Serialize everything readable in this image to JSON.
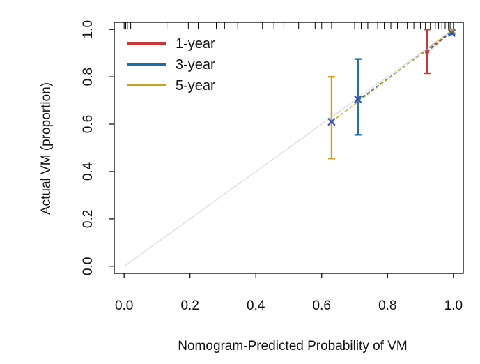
{
  "chart_data": {
    "type": "line",
    "title": "",
    "xlabel": "Nomogram-Predicted Probability of VM",
    "ylabel": "Actual VM (proportion)",
    "xlim": [
      -0.03,
      1.03
    ],
    "ylim": [
      -0.03,
      1.03
    ],
    "xticks": [
      "0.0",
      "0.2",
      "0.4",
      "0.6",
      "0.8",
      "1.0"
    ],
    "yticks": [
      "0.0",
      "0.2",
      "0.4",
      "0.6",
      "0.8",
      "1.0"
    ],
    "grid": false,
    "legend_position": "top-left",
    "ideal_line": {
      "x": [
        0,
        1
      ],
      "y": [
        0,
        1
      ],
      "color": "#d9d9d9"
    },
    "series": [
      {
        "name": "1-year",
        "color": "#c8383a",
        "points": [
          {
            "x": 0.92,
            "y": 0.905,
            "lower": 0.815,
            "upper": 1.0
          },
          {
            "x": 0.995,
            "y": 0.99,
            "lower": 0.98,
            "upper": 1.0
          }
        ]
      },
      {
        "name": "3-year",
        "color": "#1a6fa8",
        "points": [
          {
            "x": 0.71,
            "y": 0.7,
            "lower": 0.555,
            "upper": 0.875
          },
          {
            "x": 0.995,
            "y": 0.99,
            "lower": 0.98,
            "upper": 1.0
          }
        ]
      },
      {
        "name": "5-year",
        "color": "#c9a227",
        "points": [
          {
            "x": 0.63,
            "y": 0.61,
            "lower": 0.455,
            "upper": 0.8
          },
          {
            "x": 0.995,
            "y": 0.995,
            "lower": 0.985,
            "upper": 1.0
          }
        ]
      }
    ],
    "cross_markers": [
      {
        "x": 0.63,
        "y": 0.61
      },
      {
        "x": 0.71,
        "y": 0.705
      },
      {
        "x": 0.995,
        "y": 0.985
      }
    ],
    "marker_color": "#3a4fb0",
    "rug_ticks": [
      0.0,
      0.005,
      0.01,
      0.02,
      0.13,
      0.195,
      0.225,
      0.28,
      0.305,
      0.345,
      0.42,
      0.455,
      0.485,
      0.53,
      0.555,
      0.58,
      0.6,
      0.63,
      0.7,
      0.72,
      0.74,
      0.77,
      0.79,
      0.81,
      0.83,
      0.86,
      0.88,
      0.9,
      0.915,
      0.93,
      0.945,
      0.955,
      0.965,
      0.975,
      0.985,
      0.99,
      1.0
    ]
  }
}
